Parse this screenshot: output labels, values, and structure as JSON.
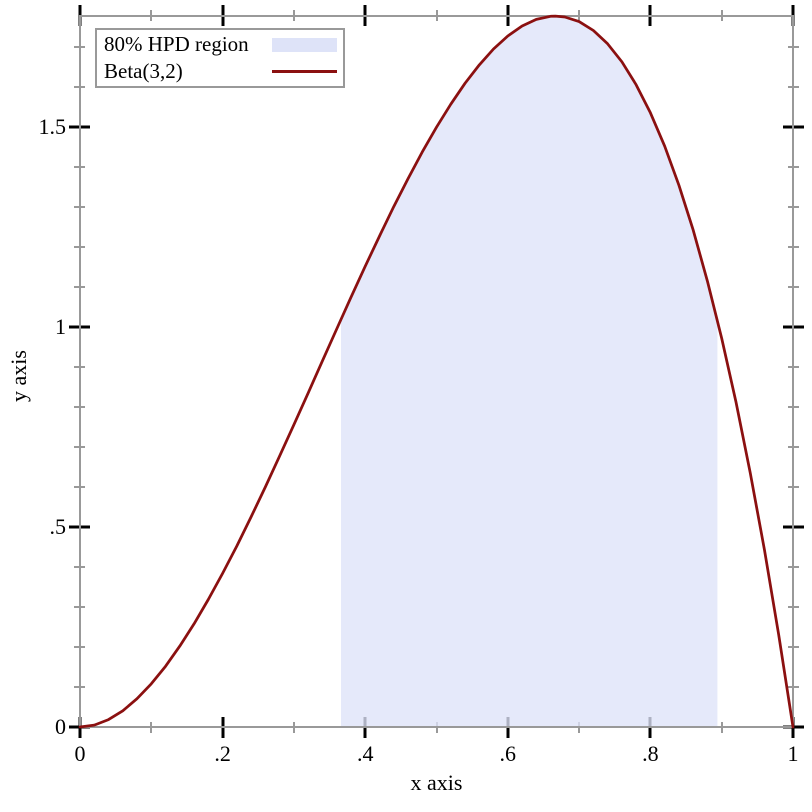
{
  "figure": {
    "bg": "#ffffff"
  },
  "axes": {
    "x_label": "x axis",
    "y_label": "y axis",
    "xlim": [
      0,
      1
    ],
    "ylim": [
      0,
      1.778
    ],
    "frame_color": "#999999",
    "major_tick_color": "#000000",
    "minor_tick_color": "#333333",
    "x_major_ticks": [
      {
        "v": 0,
        "label": "0"
      },
      {
        "v": 0.2,
        "label": ".2"
      },
      {
        "v": 0.4,
        "label": ".4"
      },
      {
        "v": 0.6,
        "label": ".6"
      },
      {
        "v": 0.8,
        "label": ".8"
      },
      {
        "v": 1,
        "label": "1"
      }
    ],
    "x_minor_ticks": [
      0.1,
      0.3,
      0.5,
      0.7,
      0.9
    ],
    "y_major_ticks": [
      {
        "v": 0,
        "label": "0"
      },
      {
        "v": 0.5,
        "label": ".5"
      },
      {
        "v": 1,
        "label": "1"
      },
      {
        "v": 1.5,
        "label": "1.5"
      }
    ],
    "y_minor_ticks": [
      0.1,
      0.2,
      0.3,
      0.4,
      0.6,
      0.7,
      0.8,
      0.9,
      1.1,
      1.2,
      1.3,
      1.4,
      1.6,
      1.7
    ]
  },
  "legend": {
    "entries": [
      {
        "label": "80% HPD region",
        "swatch": "fill",
        "color": "#dee3f8"
      },
      {
        "label": "Beta(3,2)",
        "swatch": "line",
        "color": "#8b1010"
      }
    ]
  },
  "chart_data": {
    "type": "line",
    "title": "",
    "xlabel": "x axis",
    "ylabel": "y axis",
    "xlim": [
      0,
      1
    ],
    "ylim": [
      0,
      1.778
    ],
    "grid": false,
    "legend_position": "top-left",
    "series": [
      {
        "name": "Beta(3,2)",
        "formula": "12*x^2*(1-x)",
        "color": "#8b1010",
        "x": [
          0,
          0.02,
          0.04,
          0.06,
          0.08,
          0.1,
          0.12,
          0.14,
          0.16,
          0.18,
          0.2,
          0.22,
          0.24,
          0.26,
          0.28,
          0.3,
          0.32,
          0.34,
          0.36,
          0.38,
          0.4,
          0.42,
          0.44,
          0.46,
          0.48,
          0.5,
          0.52,
          0.54,
          0.56,
          0.58,
          0.6,
          0.62,
          0.64,
          0.66,
          0.6667,
          0.68,
          0.7,
          0.72,
          0.74,
          0.76,
          0.78,
          0.8,
          0.82,
          0.84,
          0.86,
          0.88,
          0.9,
          0.92,
          0.94,
          0.96,
          0.98,
          1.0
        ],
        "y": [
          0,
          0.0047,
          0.0184,
          0.0406,
          0.0707,
          0.108,
          0.1521,
          0.2023,
          0.258,
          0.3188,
          0.384,
          0.453,
          0.5253,
          0.6003,
          0.6774,
          0.756,
          0.8356,
          0.9155,
          0.9953,
          1.0743,
          1.152,
          1.2277,
          1.301,
          1.3712,
          1.4377,
          1.5,
          1.5575,
          1.6096,
          1.6558,
          1.6955,
          1.728,
          1.7529,
          1.7695,
          1.7772,
          1.7778,
          1.7756,
          1.764,
          1.7418,
          1.7085,
          1.6635,
          1.6062,
          1.536,
          1.4524,
          1.3548,
          1.2425,
          1.1151,
          0.972,
          0.8125,
          0.6362,
          0.4424,
          0.2305,
          0
        ]
      }
    ],
    "region": {
      "name": "80% HPD region",
      "interval": [
        0.366,
        0.894
      ],
      "fill": "rgba(222,227,249,0.78)",
      "x": [
        0.366,
        0.38,
        0.4,
        0.42,
        0.44,
        0.46,
        0.48,
        0.5,
        0.52,
        0.54,
        0.56,
        0.58,
        0.6,
        0.62,
        0.64,
        0.66,
        0.6667,
        0.68,
        0.7,
        0.72,
        0.74,
        0.76,
        0.78,
        0.8,
        0.82,
        0.84,
        0.86,
        0.88,
        0.894
      ],
      "y": [
        1.019,
        1.0743,
        1.152,
        1.2277,
        1.301,
        1.3712,
        1.4377,
        1.5,
        1.5575,
        1.6096,
        1.6558,
        1.6955,
        1.728,
        1.7529,
        1.7695,
        1.7772,
        1.7778,
        1.7756,
        1.764,
        1.7418,
        1.7085,
        1.6635,
        1.6062,
        1.536,
        1.4524,
        1.3548,
        1.2425,
        1.1151,
        1.0166
      ]
    }
  }
}
